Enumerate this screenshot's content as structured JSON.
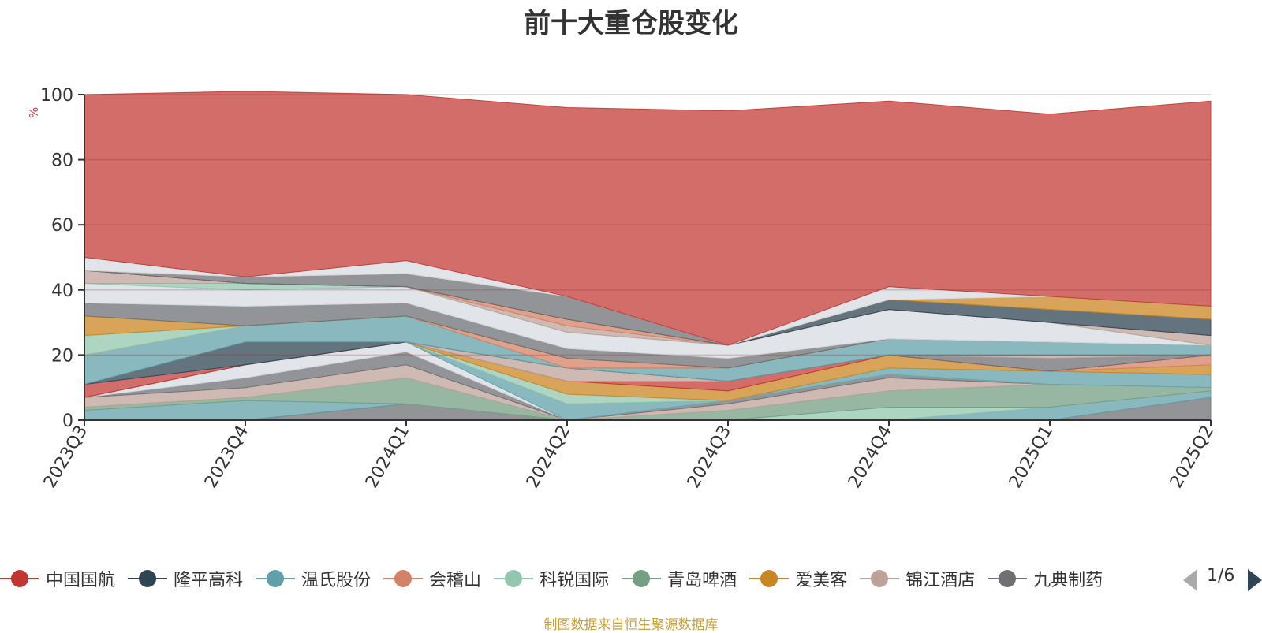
{
  "chart_data": {
    "type": "area",
    "stacked": true,
    "title": "前十大重仓股变化",
    "ylabel": "%",
    "xlabel": "",
    "ylim": [
      0,
      100
    ],
    "yticks": [
      0,
      20,
      40,
      60,
      80,
      100
    ],
    "grid": true,
    "categories": [
      "2023Q3",
      "2023Q4",
      "2024Q1",
      "2024Q2",
      "2024Q3",
      "2024Q4",
      "2025Q1",
      "2025Q2"
    ],
    "series": [
      {
        "name": "",
        "color": "#6e7074",
        "values": [
          0,
          0,
          5,
          0,
          0,
          0,
          0,
          0
        ]
      },
      {
        "name": "九典制药",
        "color": "#6e7074",
        "values": [
          0,
          0,
          0,
          0,
          0,
          0,
          0,
          7
        ]
      },
      {
        "name": "温氏股份",
        "color": "#61a0a8",
        "values": [
          3,
          6,
          0,
          0,
          0,
          0,
          4,
          2
        ]
      },
      {
        "name": "科锐国际",
        "color": "#91c7ae",
        "values": [
          0,
          0,
          0,
          0,
          0,
          4,
          0,
          0
        ]
      },
      {
        "name": "青岛啤酒",
        "color": "#749f83",
        "values": [
          1,
          1,
          8,
          0,
          3,
          5,
          7,
          1
        ]
      },
      {
        "name": "锦江酒店",
        "color": "#bda29a",
        "values": [
          3,
          3,
          4,
          0,
          2,
          4,
          0,
          0
        ]
      },
      {
        "name": "九典制药",
        "color": "#6e7074",
        "values": [
          0,
          3,
          4,
          0,
          1,
          1,
          0,
          0
        ]
      },
      {
        "name": "",
        "color": "#d7dce3",
        "values": [
          0,
          4,
          3,
          0,
          0,
          0,
          0,
          0
        ]
      },
      {
        "name": "温氏股份",
        "color": "#61a0a8",
        "values": [
          0,
          0,
          0,
          5,
          0,
          2,
          4,
          4
        ]
      },
      {
        "name": "科锐国际",
        "color": "#91c7ae",
        "values": [
          0,
          0,
          0,
          3,
          0,
          0,
          0,
          0
        ]
      },
      {
        "name": "爱美客",
        "color": "#ca8622",
        "values": [
          0,
          0,
          0,
          4,
          3,
          4,
          0,
          3
        ]
      },
      {
        "name": "会稽山",
        "color": "#d48265",
        "values": [
          0,
          0,
          0,
          0,
          0,
          0,
          0,
          3
        ]
      },
      {
        "name": "中国国航",
        "color": "#c23531",
        "values": [
          4,
          0,
          0,
          0,
          3,
          0,
          0,
          0
        ]
      },
      {
        "name": "九典制药",
        "color": "#6e7074",
        "values": [
          0,
          0,
          0,
          0,
          0,
          0,
          4,
          0
        ]
      },
      {
        "name": "锦江酒店",
        "color": "#bda29a",
        "values": [
          0,
          0,
          0,
          4,
          0,
          0,
          1,
          0
        ]
      },
      {
        "name": "隆平高科",
        "color": "#2f4554",
        "values": [
          0,
          7,
          0,
          0,
          0,
          0,
          0,
          0
        ]
      },
      {
        "name": "温氏股份",
        "color": "#61a0a8",
        "values": [
          9,
          5,
          8,
          0,
          4,
          5,
          4,
          3
        ]
      },
      {
        "name": "会稽山",
        "color": "#d48265",
        "values": [
          0,
          0,
          0,
          3,
          0,
          0,
          0,
          0
        ]
      },
      {
        "name": "科锐国际",
        "color": "#91c7ae",
        "values": [
          6,
          0,
          0,
          0,
          0,
          0,
          0,
          0
        ]
      },
      {
        "name": "爱美客",
        "color": "#ca8622",
        "values": [
          6,
          0,
          0,
          0,
          0,
          0,
          0,
          0
        ]
      },
      {
        "name": "九典制药",
        "color": "#6e7074",
        "values": [
          4,
          6,
          4,
          3,
          3,
          0,
          0,
          0
        ]
      },
      {
        "name": "",
        "color": "#d7dce3",
        "values": [
          6,
          5,
          5,
          5,
          4,
          9,
          6,
          0
        ]
      },
      {
        "name": "科锐国际",
        "color": "#91c7ae",
        "values": [
          0,
          2,
          0,
          0,
          0,
          0,
          0,
          0
        ]
      },
      {
        "name": "锦江酒店",
        "color": "#bda29a",
        "values": [
          4,
          0,
          0,
          2,
          0,
          0,
          0,
          3
        ]
      },
      {
        "name": "会稽山",
        "color": "#d48265",
        "values": [
          0,
          0,
          0,
          2,
          0,
          0,
          0,
          0
        ]
      },
      {
        "name": "隆平高科",
        "color": "#2f4554",
        "values": [
          0,
          0,
          0,
          0,
          0,
          3,
          4,
          5
        ]
      },
      {
        "name": "九典制药",
        "color": "#6e7074",
        "values": [
          0,
          2,
          4,
          7,
          0,
          0,
          0,
          0
        ]
      },
      {
        "name": "爱美客",
        "color": "#ca8622",
        "values": [
          0,
          0,
          0,
          0,
          0,
          0,
          4,
          4
        ]
      },
      {
        "name": "",
        "color": "#d7dce3",
        "values": [
          4,
          0,
          4,
          0,
          0,
          4,
          0,
          0
        ]
      },
      {
        "name": "中国国航",
        "color": "#c23531",
        "values": [
          50,
          57,
          51,
          58,
          72,
          57,
          56,
          63
        ]
      }
    ]
  },
  "legend": {
    "items": [
      {
        "label": "中国国航",
        "color": "#c23531"
      },
      {
        "label": "隆平高科",
        "color": "#2f4554"
      },
      {
        "label": "温氏股份",
        "color": "#61a0a8"
      },
      {
        "label": "会稽山",
        "color": "#d48265"
      },
      {
        "label": "科锐国际",
        "color": "#91c7ae"
      },
      {
        "label": "青岛啤酒",
        "color": "#749f83"
      },
      {
        "label": "爱美客",
        "color": "#ca8622"
      },
      {
        "label": "锦江酒店",
        "color": "#bda29a"
      },
      {
        "label": "九典制药",
        "color": "#6e7074"
      }
    ],
    "page": "1/6"
  },
  "source": "制图数据来自恒生聚源数据库"
}
